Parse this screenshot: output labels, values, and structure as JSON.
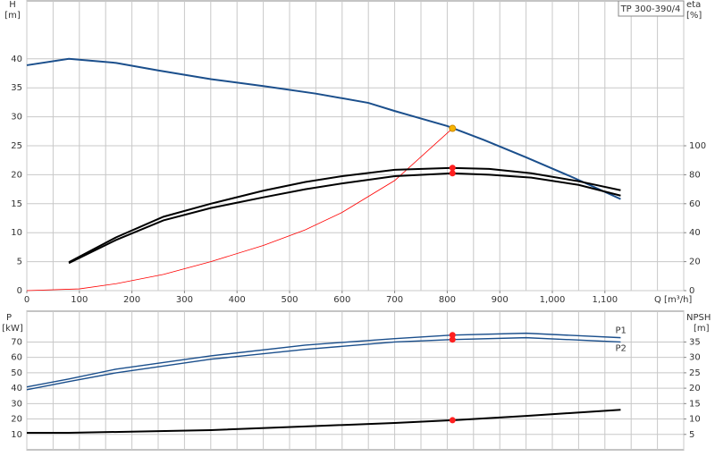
{
  "chart_data": [
    {
      "type": "line",
      "title": "TP 300-390/4",
      "ylabel": "H",
      "yunit": "[m]",
      "y2label": "eta",
      "y2unit": "[%]",
      "xlabel": "Q [m³/h]",
      "xlim": [
        0,
        1250
      ],
      "ylim": [
        0,
        50
      ],
      "y2lim": [
        0,
        200
      ],
      "xticks": [
        0,
        100,
        200,
        300,
        400,
        500,
        600,
        700,
        800,
        900,
        {
          "value": 1000,
          "label": "1,000"
        },
        {
          "value": 1100,
          "label": "1,100"
        }
      ],
      "xgrid": [
        0,
        50,
        100,
        150,
        200,
        250,
        300,
        350,
        400,
        450,
        500,
        550,
        600,
        650,
        700,
        750,
        800,
        850,
        900,
        950,
        1000,
        1050,
        1100,
        1150,
        1200,
        1250
      ],
      "yticks": [
        0,
        5,
        10,
        15,
        20,
        25,
        30,
        35,
        40
      ],
      "y2ticks": [
        0,
        20,
        40,
        60,
        80,
        100
      ],
      "grid": true,
      "series": [
        {
          "color": "#ff0000",
          "x": [
            0,
            100,
            170,
            260,
            350,
            450,
            530,
            600,
            700,
            810
          ],
          "values": [
            0,
            0.3,
            1.2,
            2.8,
            5,
            7.8,
            10.5,
            13.5,
            19,
            28
          ]
        },
        {
          "color": "#1b4f8c",
          "x": [
            0,
            80,
            170,
            250,
            350,
            450,
            550,
            650,
            700,
            800,
            870,
            950,
            1040,
            1130
          ],
          "values": [
            38.9,
            40,
            39.3,
            38,
            36.5,
            35.3,
            34,
            32.4,
            31,
            28.4,
            26,
            23,
            19.5,
            15.8
          ]
        },
        {
          "color": "#000000",
          "axis": "y2",
          "x": [
            80,
            170,
            260,
            350,
            450,
            530,
            600,
            700,
            810,
            880,
            960,
            1050,
            1130
          ],
          "values": [
            19.6,
            36.8,
            51,
            60,
            69,
            75,
            79,
            83.4,
            84.7,
            84,
            81,
            75.5,
            69.3
          ]
        },
        {
          "color": "#000000",
          "axis": "y2",
          "x": [
            80,
            170,
            260,
            350,
            450,
            530,
            600,
            700,
            810,
            880,
            960,
            1050,
            1130
          ],
          "values": [
            19,
            35,
            48.5,
            57,
            64.4,
            70,
            74,
            79,
            81,
            80,
            78,
            73,
            65.6
          ]
        },
        {
          "color": "#ff2020",
          "marker": true,
          "axis": "y2",
          "x": [
            810,
            810
          ],
          "values": [
            84.7,
            81
          ]
        },
        {
          "color": "#f5b400",
          "marker": true,
          "x": [
            810
          ],
          "values": [
            28
          ]
        }
      ]
    },
    {
      "type": "line",
      "ylabel": "P",
      "yunit": "[kW]",
      "y2label": "NPSH",
      "y2unit": "[m]",
      "xlim": [
        0,
        1250
      ],
      "ylim": [
        0,
        90
      ],
      "y2lim": [
        0,
        45
      ],
      "xgrid": [
        0,
        50,
        100,
        150,
        200,
        250,
        300,
        350,
        400,
        450,
        500,
        550,
        600,
        650,
        700,
        750,
        800,
        850,
        900,
        950,
        1000,
        1050,
        1100,
        1150,
        1200,
        1250
      ],
      "yticks": [
        10,
        20,
        30,
        40,
        50,
        60,
        70
      ],
      "y2ticks": [
        5,
        10,
        15,
        20,
        25,
        30,
        35
      ],
      "grid": true,
      "series": [
        {
          "name": "P1",
          "color": "#1b4f8c",
          "x": [
            0,
            80,
            170,
            350,
            530,
            700,
            810,
            950,
            1130
          ],
          "values": [
            40.8,
            46,
            52.4,
            61,
            68,
            72.2,
            74.5,
            75.7,
            72.8
          ]
        },
        {
          "name": "P2",
          "color": "#1b4f8c",
          "x": [
            0,
            80,
            170,
            350,
            530,
            700,
            810,
            950,
            1130
          ],
          "values": [
            39,
            44.3,
            50,
            58.8,
            65.2,
            70,
            71.6,
            72.8,
            70
          ]
        },
        {
          "color": "#000000",
          "axis": "y2",
          "x": [
            0,
            80,
            350,
            530,
            700,
            810,
            950,
            1130
          ],
          "values": [
            5.5,
            5.5,
            6.4,
            7.6,
            8.7,
            9.6,
            11,
            13
          ]
        },
        {
          "color": "#ff2020",
          "marker": true,
          "x": [
            810,
            810
          ],
          "values": [
            74.5,
            71.6
          ]
        },
        {
          "color": "#ff2020",
          "marker": true,
          "axis": "y2",
          "x": [
            810
          ],
          "values": [
            9.6
          ]
        }
      ]
    }
  ]
}
